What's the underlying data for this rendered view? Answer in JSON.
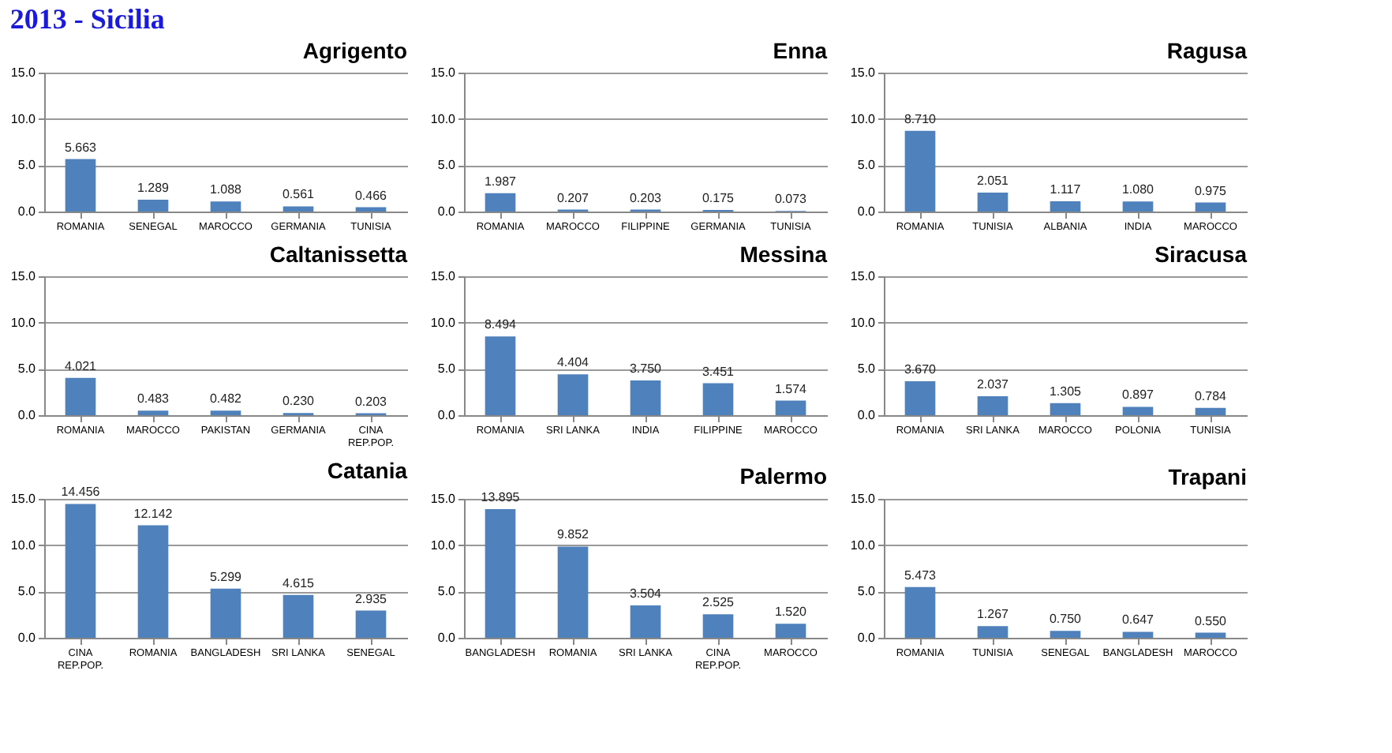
{
  "chart_data": [
    {
      "type": "other",
      "title": "2013 - Sicilia"
    },
    {
      "type": "bar",
      "title": "Agrigento",
      "categories": [
        "ROMANIA",
        "SENEGAL",
        "MAROCCO",
        "GERMANIA",
        "TUNISIA"
      ],
      "values": [
        5.663,
        1.289,
        1.088,
        0.561,
        0.466
      ],
      "value_labels": [
        "5.663",
        "1.289",
        "1.088",
        "0.561",
        "0.466"
      ],
      "color": "#4f81bd",
      "ylim": [
        0,
        15
      ],
      "yticks": [
        {
          "value": 0,
          "label": "0.0"
        },
        {
          "value": 5,
          "label": "5.0"
        },
        {
          "value": 10,
          "label": "10.0"
        },
        {
          "value": 15,
          "label": "15.0"
        }
      ],
      "grid": "y"
    },
    {
      "type": "bar",
      "title": "Enna",
      "categories": [
        "ROMANIA",
        "MAROCCO",
        "FILIPPINE",
        "GERMANIA",
        "TUNISIA"
      ],
      "values": [
        1.987,
        0.207,
        0.203,
        0.175,
        0.073
      ],
      "value_labels": [
        "1.987",
        "0.207",
        "0.203",
        "0.175",
        "0.073"
      ],
      "color": "#4f81bd",
      "ylim": [
        0,
        15
      ],
      "yticks": [
        {
          "value": 0,
          "label": "0.0"
        },
        {
          "value": 5,
          "label": "5.0"
        },
        {
          "value": 10,
          "label": "10.0"
        },
        {
          "value": 15,
          "label": "15.0"
        }
      ],
      "grid": "y"
    },
    {
      "type": "bar",
      "title": "Ragusa",
      "categories": [
        "ROMANIA",
        "TUNISIA",
        "ALBANIA",
        "INDIA",
        "MAROCCO"
      ],
      "values": [
        8.71,
        2.051,
        1.117,
        1.08,
        0.975
      ],
      "value_labels": [
        "8.710",
        "2.051",
        "1.117",
        "1.080",
        "0.975"
      ],
      "color": "#4f81bd",
      "ylim": [
        0,
        15
      ],
      "yticks": [
        {
          "value": 0,
          "label": "0.0"
        },
        {
          "value": 5,
          "label": "5.0"
        },
        {
          "value": 10,
          "label": "10.0"
        },
        {
          "value": 15,
          "label": "15.0"
        }
      ],
      "grid": "y"
    },
    {
      "type": "bar",
      "title": "Caltanissetta",
      "categories": [
        "ROMANIA",
        "MAROCCO",
        "PAKISTAN",
        "GERMANIA",
        "CINA REP.POP."
      ],
      "values": [
        4.021,
        0.483,
        0.482,
        0.23,
        0.203
      ],
      "value_labels": [
        "4.021",
        "0.483",
        "0.482",
        "0.230",
        "0.203"
      ],
      "color": "#4f81bd",
      "ylim": [
        0,
        15
      ],
      "yticks": [
        {
          "value": 0,
          "label": "0.0"
        },
        {
          "value": 5,
          "label": "5.0"
        },
        {
          "value": 10,
          "label": "10.0"
        },
        {
          "value": 15,
          "label": "15.0"
        }
      ],
      "grid": "y"
    },
    {
      "type": "bar",
      "title": "Messina",
      "categories": [
        "ROMANIA",
        "SRI LANKA",
        "INDIA",
        "FILIPPINE",
        "MAROCCO"
      ],
      "values": [
        8.494,
        4.404,
        3.75,
        3.451,
        1.574
      ],
      "value_labels": [
        "8.494",
        "4.404",
        "3.750",
        "3.451",
        "1.574"
      ],
      "color": "#4f81bd",
      "ylim": [
        0,
        15
      ],
      "yticks": [
        {
          "value": 0,
          "label": "0.0"
        },
        {
          "value": 5,
          "label": "5.0"
        },
        {
          "value": 10,
          "label": "10.0"
        },
        {
          "value": 15,
          "label": "15.0"
        }
      ],
      "grid": "y"
    },
    {
      "type": "bar",
      "title": "Siracusa",
      "categories": [
        "ROMANIA",
        "SRI LANKA",
        "MAROCCO",
        "POLONIA",
        "TUNISIA"
      ],
      "values": [
        3.67,
        2.037,
        1.305,
        0.897,
        0.784
      ],
      "value_labels": [
        "3.670",
        "2.037",
        "1.305",
        "0.897",
        "0.784"
      ],
      "color": "#4f81bd",
      "ylim": [
        0,
        15
      ],
      "yticks": [
        {
          "value": 0,
          "label": "0.0"
        },
        {
          "value": 5,
          "label": "5.0"
        },
        {
          "value": 10,
          "label": "10.0"
        },
        {
          "value": 15,
          "label": "15.0"
        }
      ],
      "grid": "y"
    },
    {
      "type": "bar",
      "title": "Catania",
      "categories": [
        "CINA REP.POP.",
        "ROMANIA",
        "BANGLADESH",
        "SRI LANKA",
        "SENEGAL"
      ],
      "values": [
        14.456,
        12.142,
        5.299,
        4.615,
        2.935
      ],
      "value_labels": [
        "14.456",
        "12.142",
        "5.299",
        "4.615",
        "2.935"
      ],
      "color": "#4f81bd",
      "ylim": [
        0,
        15
      ],
      "yticks": [
        {
          "value": 0,
          "label": "0.0"
        },
        {
          "value": 5,
          "label": "5.0"
        },
        {
          "value": 10,
          "label": "10.0"
        },
        {
          "value": 15,
          "label": "15.0"
        }
      ],
      "grid": "y"
    },
    {
      "type": "bar",
      "title": "Palermo",
      "categories": [
        "BANGLADESH",
        "ROMANIA",
        "SRI LANKA",
        "CINA REP.POP.",
        "MAROCCO"
      ],
      "values": [
        13.895,
        9.852,
        3.504,
        2.525,
        1.52
      ],
      "value_labels": [
        "13.895",
        "9.852",
        "3.504",
        "2.525",
        "1.520"
      ],
      "color": "#4f81bd",
      "ylim": [
        0,
        15
      ],
      "yticks": [
        {
          "value": 0,
          "label": "0.0"
        },
        {
          "value": 5,
          "label": "5.0"
        },
        {
          "value": 10,
          "label": "10.0"
        },
        {
          "value": 15,
          "label": "15.0"
        }
      ],
      "grid": "y"
    },
    {
      "type": "bar",
      "title": "Trapani",
      "categories": [
        "ROMANIA",
        "TUNISIA",
        "SENEGAL",
        "BANGLADESH",
        "MAROCCO"
      ],
      "values": [
        5.473,
        1.267,
        0.75,
        0.647,
        0.55
      ],
      "value_labels": [
        "5.473",
        "1.267",
        "0.750",
        "0.647",
        "0.550"
      ],
      "color": "#4f81bd",
      "ylim": [
        0,
        15
      ],
      "yticks": [
        {
          "value": 0,
          "label": "0.0"
        },
        {
          "value": 5,
          "label": "5.0"
        },
        {
          "value": 10,
          "label": "10.0"
        },
        {
          "value": 15,
          "label": "15.0"
        }
      ],
      "grid": "y"
    }
  ]
}
